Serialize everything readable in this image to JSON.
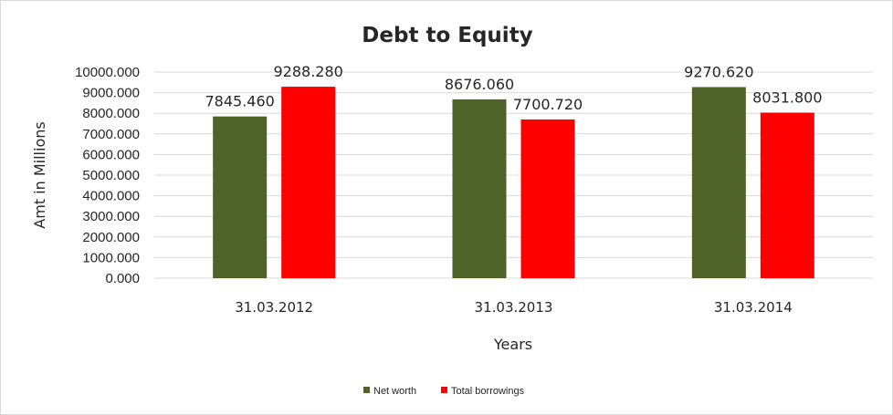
{
  "chart_data": {
    "type": "bar",
    "title": "Debt to Equity",
    "xlabel": "Years",
    "ylabel": "Amt in Millions",
    "categories": [
      "31.03.2012",
      "31.03.2013",
      "31.03.2014"
    ],
    "series": [
      {
        "name": "Net worth",
        "color": "#4f6228",
        "values": [
          7845.46,
          8676.06,
          9270.62
        ],
        "labels": [
          "7845.460",
          "8676.060",
          "9270.620"
        ]
      },
      {
        "name": "Total borrowings",
        "color": "#ff0000",
        "values": [
          9288.28,
          7700.72,
          8031.8
        ],
        "labels": [
          "9288.280",
          "7700.720",
          "8031.800"
        ]
      }
    ],
    "ylim": [
      0,
      10000
    ],
    "yticks": [
      "0.000",
      "1000.000",
      "2000.000",
      "3000.000",
      "4000.000",
      "5000.000",
      "6000.000",
      "7000.000",
      "8000.000",
      "9000.000",
      "10000.000"
    ],
    "grid": true,
    "legend_position": "bottom"
  }
}
